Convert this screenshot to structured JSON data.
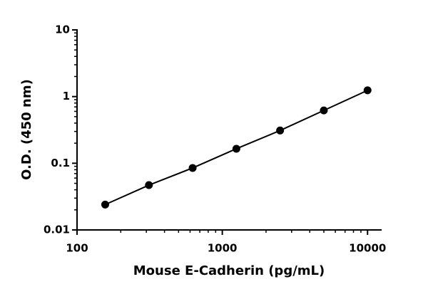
{
  "chart_data": {
    "type": "scatter",
    "xlabel": "Mouse E-Cadherin (pg/mL)",
    "ylabel": "O.D. (450 nm)",
    "xscale": "log",
    "yscale": "log",
    "xlim": [
      100,
      12500
    ],
    "ylim": [
      0.01,
      10
    ],
    "xticks": [
      100,
      1000,
      10000
    ],
    "yticks": [
      0.01,
      0.1,
      1,
      10
    ],
    "minor_ticks": true,
    "x": [
      156.25,
      312.5,
      625,
      1250,
      2500,
      5000,
      10000
    ],
    "series": [
      {
        "color": "#000000",
        "values": [
          0.024,
          0.047,
          0.085,
          0.165,
          0.31,
          0.62,
          1.24
        ]
      }
    ]
  }
}
